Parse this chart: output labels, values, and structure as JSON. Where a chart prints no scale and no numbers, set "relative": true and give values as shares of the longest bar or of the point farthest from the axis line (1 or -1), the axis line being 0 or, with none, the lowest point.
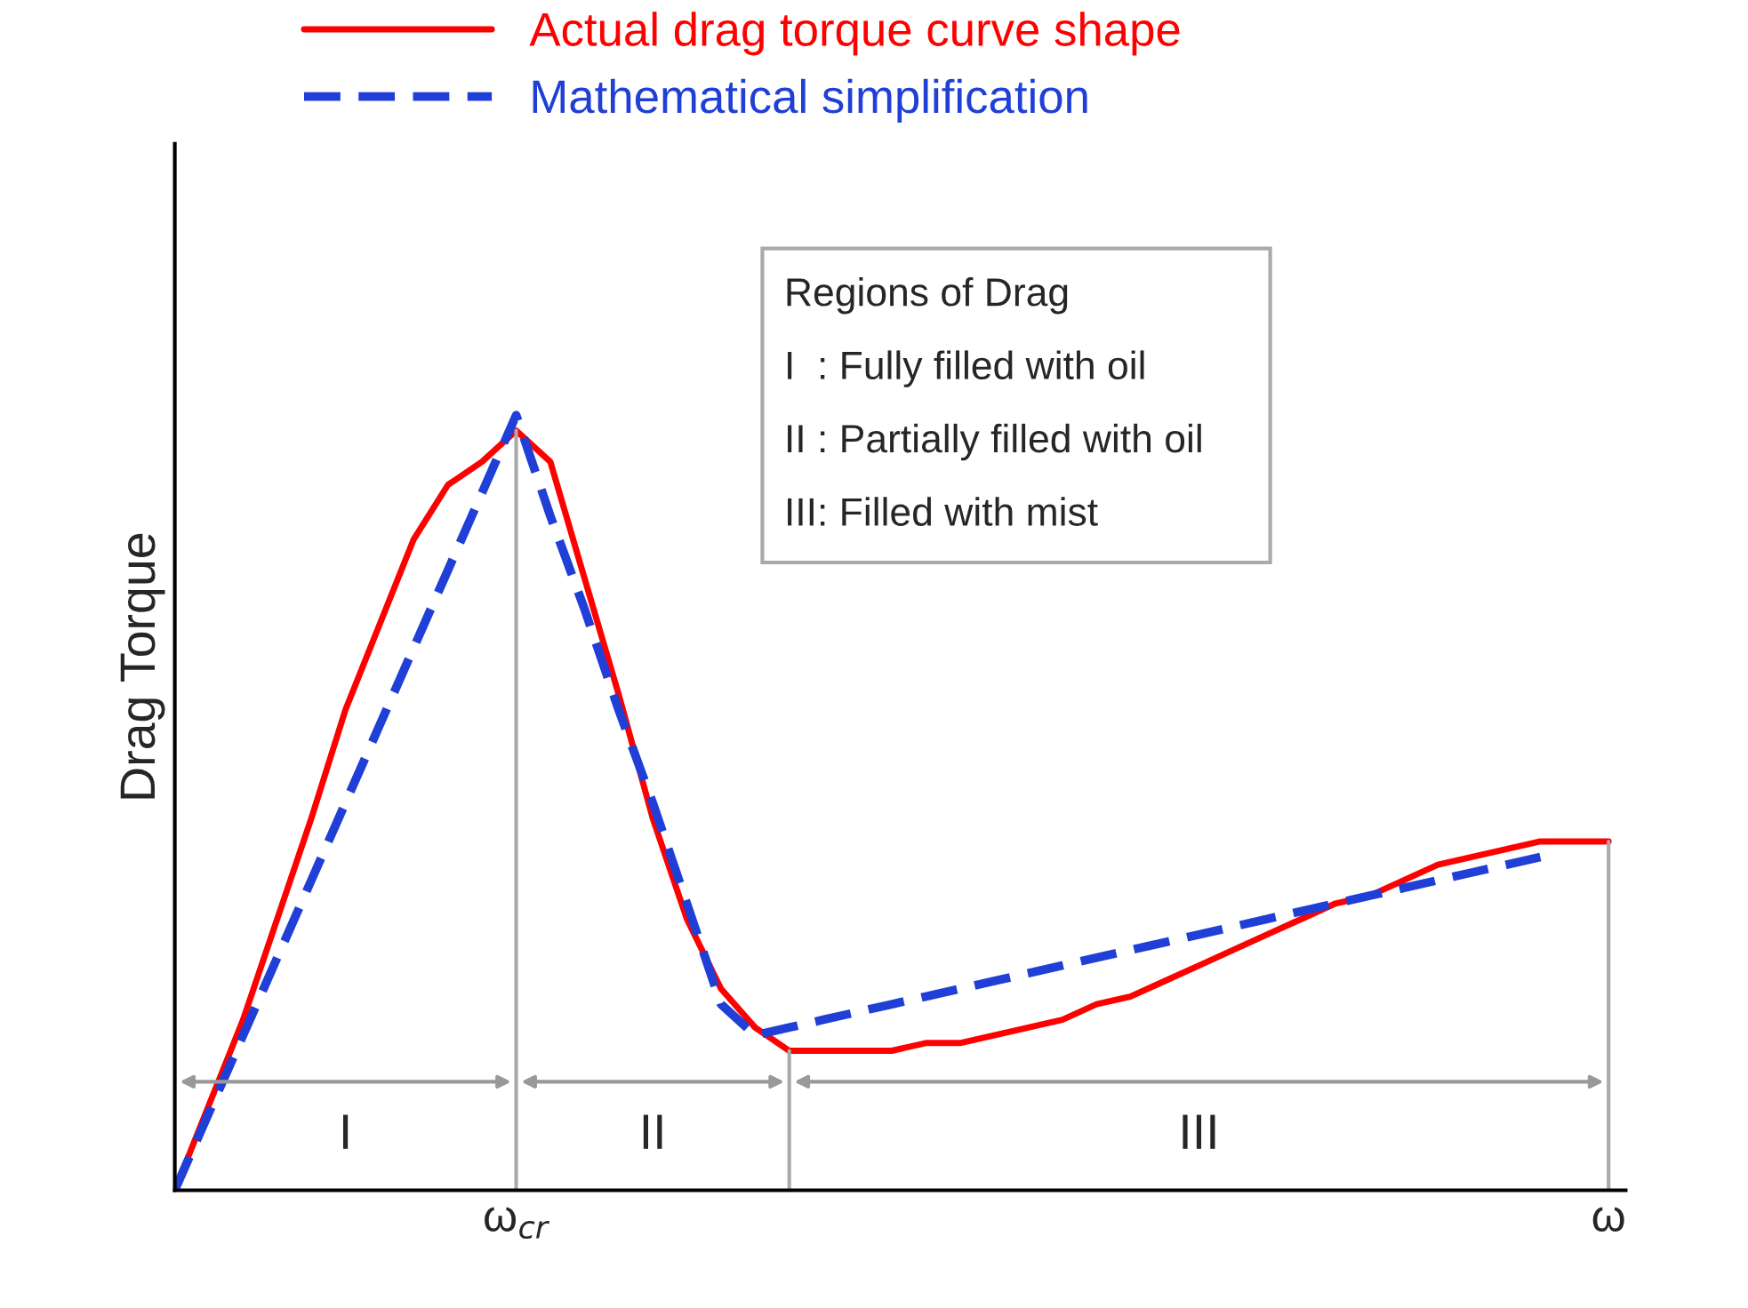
{
  "chart_data": {
    "type": "line",
    "relative": true,
    "ylabel": "Drag Torque",
    "categories": [
      null,
      null,
      null,
      null,
      null,
      null,
      null,
      null,
      null,
      null,
      "ω$_{cr}$",
      null,
      null,
      null,
      null,
      null,
      null,
      null,
      null,
      null,
      null,
      null,
      null,
      null,
      null,
      null,
      null,
      null,
      null,
      null,
      null,
      null,
      null,
      null,
      null,
      null,
      null,
      null,
      null,
      null,
      null,
      null,
      "ω"
    ],
    "series": [
      {
        "name": "Actual drag torque curve shape",
        "color": "#ff0000",
        "line_style": "solid",
        "values": [
          0,
          0.11,
          0.22,
          0.35,
          0.48,
          0.62,
          0.73,
          0.84,
          0.91,
          0.94,
          0.98,
          0.94,
          0.79,
          0.64,
          0.48,
          0.35,
          0.26,
          0.21,
          0.18,
          0.18,
          0.18,
          0.18,
          0.19,
          0.19,
          0.2,
          0.21,
          0.22,
          0.24,
          0.25,
          0.27,
          0.29,
          0.31,
          0.33,
          0.35,
          0.37,
          0.38,
          0.4,
          0.42,
          0.43,
          0.44,
          0.45,
          0.45,
          0.45
        ]
      },
      {
        "name": "Mathematical simplification",
        "color": "#1f3fd6",
        "line_style": "dashed",
        "values": [
          0,
          0.1,
          0.2,
          0.3,
          0.4,
          0.5,
          0.6,
          0.7,
          0.8,
          0.9,
          1.0,
          0.87,
          0.75,
          0.62,
          0.5,
          0.37,
          0.24,
          0.2,
          0.21,
          0.22,
          0.23,
          0.24,
          0.25,
          0.26,
          0.27,
          0.28,
          0.29,
          0.3,
          0.31,
          0.32,
          0.33,
          0.34,
          0.35,
          0.36,
          0.37,
          0.38,
          0.39,
          0.4,
          0.41,
          0.42,
          0.43,
          null,
          null
        ]
      }
    ],
    "annotations": [
      "I",
      "II",
      "III",
      "Regions of Drag",
      "I  : Fully filled with oil",
      "II : Partially filled with oil",
      "III: Filled with mist"
    ],
    "legend": "top",
    "grid": "x"
  }
}
